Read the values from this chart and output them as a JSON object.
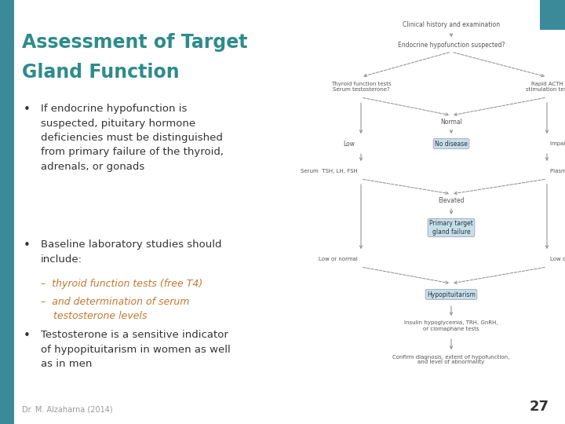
{
  "title_line1": "Assessment of Target",
  "title_line2": "Gland Function",
  "title_color": "#2e8b8b",
  "background_color": "#ffffff",
  "sidebar_color": "#3b8a9a",
  "bullet_color": "#333333",
  "sub_bullet_color": "#c07830",
  "footer": "Dr. M. Alzaharna (2014)",
  "page_number": "27",
  "corner_color": "#3b8a9a",
  "flowchart": {
    "box_color": "#c5e0eb",
    "line_color": "#888888",
    "text_color": "#555555"
  }
}
